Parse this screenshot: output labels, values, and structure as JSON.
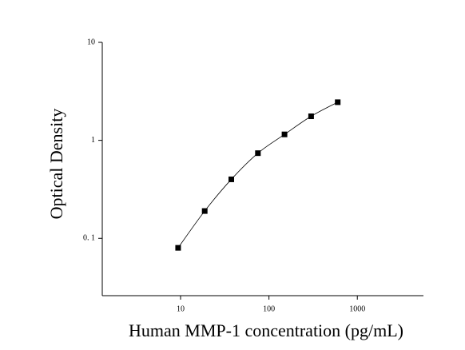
{
  "chart_data": {
    "type": "scatter",
    "x_label": "Human MMP-1 concentration (pg/mL)",
    "y_label": "Optical Density",
    "x": [
      9.38,
      18.75,
      37.5,
      75,
      150,
      300,
      600
    ],
    "series": [
      {
        "values": [
          0.08,
          0.19,
          0.4,
          0.74,
          1.15,
          1.76,
          2.45
        ],
        "color": "#000000"
      }
    ],
    "xlim": [
      1.3,
      5600
    ],
    "ylim": [
      0.026,
      10
    ],
    "xticks": [
      10,
      100,
      1000
    ],
    "yticks": [
      {
        "value": 0.1,
        "label": "0. 1"
      },
      1,
      10
    ],
    "xscale": "log",
    "yscale": "log",
    "fit_curve": true,
    "grid": false
  }
}
